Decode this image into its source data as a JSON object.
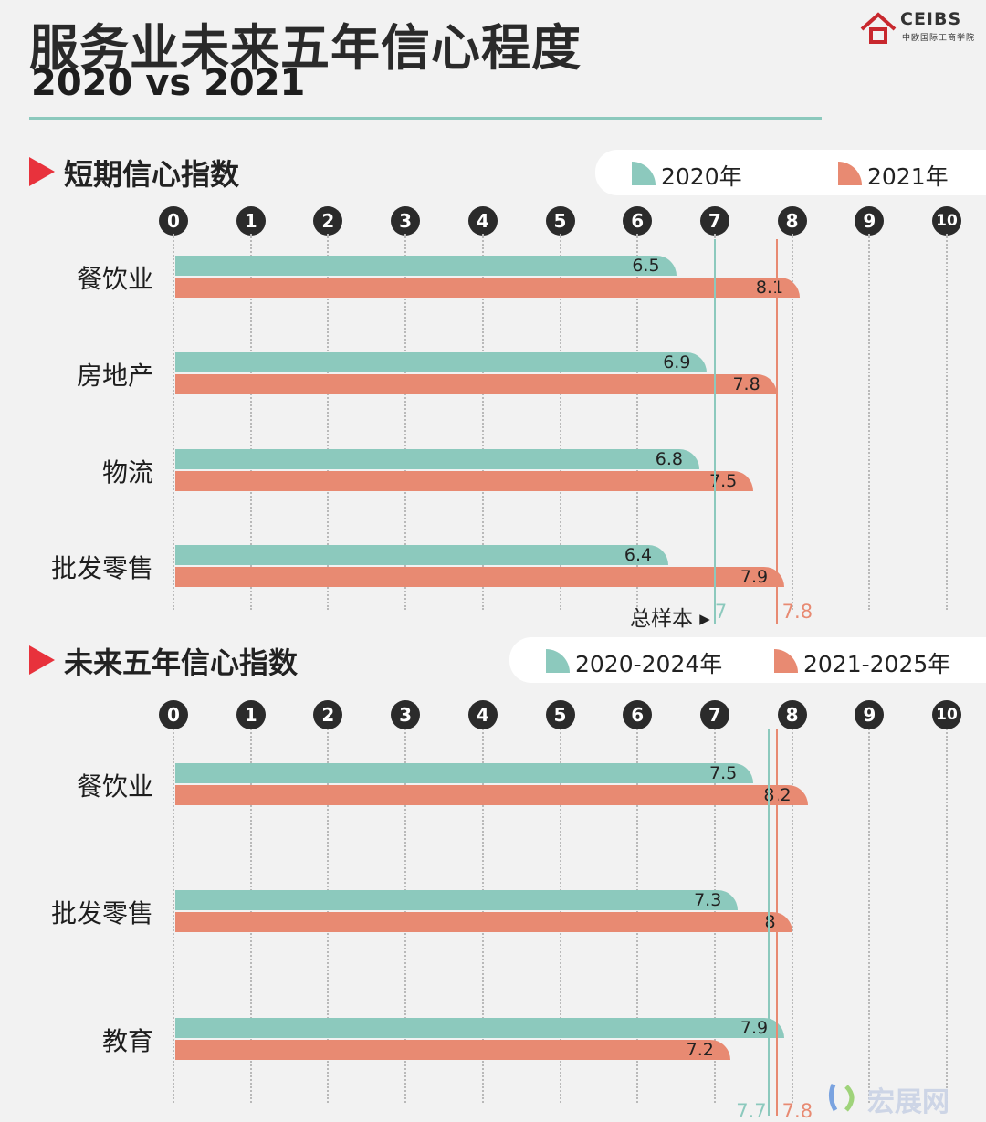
{
  "title": "服务业未来五年信心程度",
  "subtitle": "2020 vs 2021",
  "logo": {
    "name": "CEIBS",
    "sub": "中欧国际工商学院"
  },
  "watermark": "宏展网",
  "colors": {
    "teal": "#8cc9bd",
    "salmon": "#e88a72",
    "accent": "#e8323c"
  },
  "chart_data": [
    {
      "type": "bar",
      "title": "短期信心指数",
      "categories": [
        "餐饮业",
        "房地产",
        "物流",
        "批发零售"
      ],
      "series": [
        {
          "name": "2020年",
          "values": [
            6.5,
            6.9,
            6.8,
            6.4
          ]
        },
        {
          "name": "2021年",
          "values": [
            8.1,
            7.8,
            7.5,
            7.9
          ]
        }
      ],
      "xlim": [
        0,
        10
      ],
      "ticks": [
        "0",
        "1",
        "2",
        "3",
        "4",
        "5",
        "6",
        "7",
        "8",
        "9",
        "10"
      ],
      "reference": {
        "label": "总样本",
        "values": [
          7,
          7.8
        ]
      }
    },
    {
      "type": "bar",
      "title": "未来五年信心指数",
      "categories": [
        "餐饮业",
        "批发零售",
        "教育"
      ],
      "series": [
        {
          "name": "2020-2024年",
          "values": [
            7.5,
            7.3,
            7.9
          ]
        },
        {
          "name": "2021-2025年",
          "values": [
            8.2,
            8,
            7.2
          ]
        }
      ],
      "xlim": [
        0,
        10
      ],
      "ticks": [
        "0",
        "1",
        "2",
        "3",
        "4",
        "5",
        "6",
        "7",
        "8",
        "9",
        "10"
      ],
      "reference": {
        "values": [
          7.7,
          7.8
        ]
      }
    }
  ]
}
